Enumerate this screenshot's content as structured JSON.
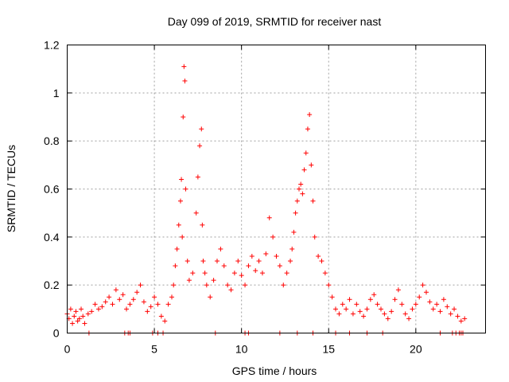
{
  "chart_data": {
    "type": "scatter",
    "title": "Day 099 of 2019, SRMTID for receiver nast",
    "xlabel": "GPS time / hours",
    "ylabel": "SRMTID / TECUs",
    "xlim": [
      0,
      24
    ],
    "ylim": [
      0,
      1.2
    ],
    "x_ticks": [
      0,
      5,
      10,
      15,
      20
    ],
    "x_tick_labels": [
      "0",
      "5",
      "10",
      "15",
      "20"
    ],
    "y_ticks": [
      0,
      0.2,
      0.4,
      0.6,
      0.8,
      1,
      1.2
    ],
    "y_tick_labels": [
      "0",
      "0.2",
      "0.4",
      "0.6",
      "0.8",
      "1",
      "1.2"
    ],
    "grid": true,
    "marker": "+",
    "color": "#ff0000",
    "series": [
      {
        "name": "SRMTID",
        "x": [
          0.0,
          0.1,
          0.2,
          0.3,
          0.4,
          0.5,
          0.6,
          0.7,
          0.8,
          0.9,
          1.0,
          1.2,
          1.4,
          1.6,
          1.8,
          2.0,
          2.2,
          2.4,
          2.6,
          2.8,
          3.0,
          3.2,
          3.4,
          3.6,
          3.8,
          4.0,
          4.2,
          4.4,
          4.6,
          4.8,
          5.0,
          5.2,
          5.4,
          5.6,
          5.8,
          6.0,
          6.1,
          6.2,
          6.3,
          6.4,
          6.5,
          6.55,
          6.6,
          6.65,
          6.7,
          6.75,
          6.8,
          6.9,
          7.0,
          7.2,
          7.4,
          7.5,
          7.6,
          7.7,
          7.75,
          7.8,
          7.9,
          8.0,
          8.2,
          8.4,
          8.6,
          8.8,
          9.0,
          9.2,
          9.4,
          9.6,
          9.8,
          10.0,
          10.2,
          10.4,
          10.6,
          10.8,
          11.0,
          11.2,
          11.4,
          11.6,
          11.8,
          12.0,
          12.2,
          12.4,
          12.6,
          12.8,
          12.9,
          13.0,
          13.1,
          13.2,
          13.3,
          13.4,
          13.5,
          13.6,
          13.7,
          13.8,
          13.9,
          14.0,
          14.1,
          14.2,
          14.4,
          14.6,
          14.8,
          15.0,
          15.2,
          15.4,
          15.6,
          15.8,
          16.0,
          16.2,
          16.4,
          16.6,
          16.8,
          17.0,
          17.2,
          17.4,
          17.6,
          17.8,
          18.0,
          18.2,
          18.4,
          18.6,
          18.8,
          19.0,
          19.2,
          19.4,
          19.6,
          19.8,
          20.0,
          20.2,
          20.4,
          20.6,
          20.8,
          21.0,
          21.2,
          21.4,
          21.6,
          21.8,
          22.0,
          22.2,
          22.4,
          22.6,
          22.8
        ],
        "y": [
          0.08,
          0.06,
          0.1,
          0.04,
          0.07,
          0.09,
          0.05,
          0.06,
          0.1,
          0.07,
          0.04,
          0.08,
          0.09,
          0.12,
          0.1,
          0.11,
          0.13,
          0.15,
          0.12,
          0.18,
          0.14,
          0.16,
          0.1,
          0.12,
          0.14,
          0.17,
          0.2,
          0.13,
          0.09,
          0.11,
          0.15,
          0.12,
          0.07,
          0.05,
          0.12,
          0.15,
          0.2,
          0.28,
          0.35,
          0.45,
          0.55,
          0.64,
          0.4,
          0.9,
          1.11,
          1.05,
          0.6,
          0.3,
          0.22,
          0.25,
          0.5,
          0.65,
          0.78,
          0.85,
          0.45,
          0.3,
          0.25,
          0.2,
          0.15,
          0.22,
          0.3,
          0.35,
          0.28,
          0.2,
          0.18,
          0.25,
          0.3,
          0.24,
          0.2,
          0.28,
          0.32,
          0.26,
          0.3,
          0.25,
          0.33,
          0.48,
          0.4,
          0.32,
          0.28,
          0.2,
          0.25,
          0.3,
          0.35,
          0.42,
          0.5,
          0.55,
          0.6,
          0.62,
          0.58,
          0.68,
          0.75,
          0.85,
          0.91,
          0.7,
          0.55,
          0.4,
          0.32,
          0.3,
          0.25,
          0.2,
          0.15,
          0.1,
          0.08,
          0.12,
          0.1,
          0.14,
          0.08,
          0.12,
          0.09,
          0.07,
          0.1,
          0.14,
          0.16,
          0.12,
          0.1,
          0.08,
          0.06,
          0.09,
          0.14,
          0.18,
          0.12,
          0.08,
          0.06,
          0.1,
          0.12,
          0.15,
          0.2,
          0.17,
          0.13,
          0.1,
          0.12,
          0.09,
          0.14,
          0.11,
          0.08,
          0.1,
          0.07,
          0.05,
          0.06
        ]
      }
    ],
    "zero_points_x": [
      1.25,
      3.3,
      3.5,
      3.6,
      4.9,
      5.2,
      5.5,
      8.5,
      10.2,
      10.4,
      12.2,
      13.2,
      14.1,
      15.4,
      16.2,
      17.2,
      18.1,
      21.4,
      22.1,
      22.3,
      22.5,
      22.6,
      22.7
    ]
  }
}
